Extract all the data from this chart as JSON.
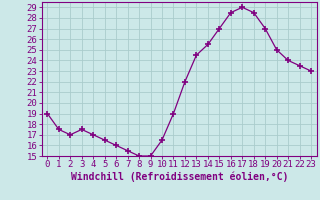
{
  "x": [
    0,
    1,
    2,
    3,
    4,
    5,
    6,
    7,
    8,
    9,
    10,
    11,
    12,
    13,
    14,
    15,
    16,
    17,
    18,
    19,
    20,
    21,
    22,
    23
  ],
  "y": [
    19,
    17.5,
    17,
    17.5,
    17,
    16.5,
    16,
    15.5,
    15,
    15,
    16.5,
    19,
    22,
    24.5,
    25.5,
    27,
    28.5,
    29,
    28.5,
    27,
    25,
    24,
    23.5,
    23
  ],
  "line_color": "#800080",
  "marker": "+",
  "marker_size": 4,
  "bg_color": "#cce8e8",
  "grid_color": "#aacccc",
  "xlabel": "Windchill (Refroidissement éolien,°C)",
  "xlim": [
    -0.5,
    23.5
  ],
  "ylim": [
    15,
    29.5
  ],
  "yticks": [
    15,
    16,
    17,
    18,
    19,
    20,
    21,
    22,
    23,
    24,
    25,
    26,
    27,
    28,
    29
  ],
  "xticks": [
    0,
    1,
    2,
    3,
    4,
    5,
    6,
    7,
    8,
    9,
    10,
    11,
    12,
    13,
    14,
    15,
    16,
    17,
    18,
    19,
    20,
    21,
    22,
    23
  ],
  "tick_color": "#800080",
  "label_color": "#800080",
  "xlabel_fontsize": 7,
  "tick_fontsize": 6.5
}
